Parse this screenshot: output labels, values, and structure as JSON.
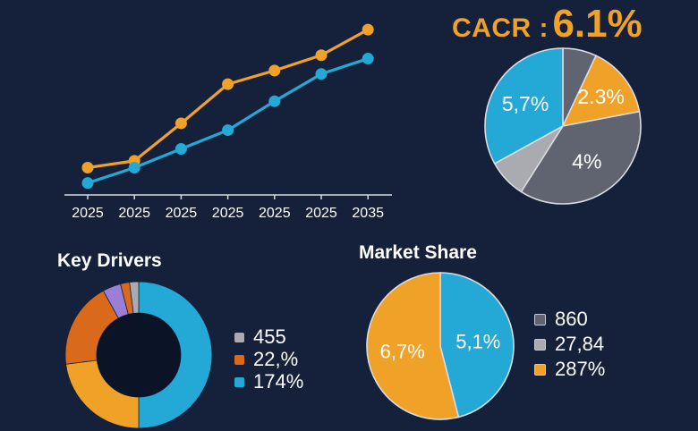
{
  "colors": {
    "background": "#15213a",
    "orange": "#f0a128",
    "blue": "#24a8d6",
    "dark_gray": "#5f6470",
    "light_gray": "#a9abb0",
    "rust": "#d96a1c",
    "text": "#ffffff",
    "axis": "#d7d9de"
  },
  "chart_data": [
    {
      "type": "line",
      "title": "",
      "categories": [
        "2025",
        "2025",
        "2025",
        "2025",
        "2025",
        "2025",
        "2035"
      ],
      "series": [
        {
          "name": "orange-series",
          "color": "#f0a128",
          "values": [
            1.0,
            1.4,
            3.6,
            5.9,
            6.7,
            7.6,
            9.1
          ]
        },
        {
          "name": "blue-series",
          "color": "#24a8d6",
          "values": [
            0.1,
            1.0,
            2.1,
            3.2,
            4.9,
            6.5,
            7.4
          ]
        }
      ],
      "ylim": [
        -0.6,
        10.0
      ],
      "grid": false
    },
    {
      "type": "pie",
      "title": "CACR : 6.1%",
      "title_parts": {
        "label": "CACR :",
        "value": "6.1%"
      },
      "slices": [
        {
          "label": "",
          "value": 7,
          "color": "#5f6470"
        },
        {
          "label": "2.3%",
          "value": 15,
          "color": "#f0a128"
        },
        {
          "label": "4%",
          "value": 37,
          "color": "#5f6470"
        },
        {
          "label": "",
          "value": 8,
          "color": "#a9abb0"
        },
        {
          "label": "5,7%",
          "value": 33,
          "color": "#24a8d6"
        }
      ]
    },
    {
      "type": "pie",
      "subtype": "donut",
      "title": "Key Drivers",
      "slices": [
        {
          "value": 50,
          "color": "#24a8d6"
        },
        {
          "value": 23,
          "color": "#f0a128"
        },
        {
          "value": 19,
          "color": "#d96a1c"
        },
        {
          "value": 4,
          "color": "#9b7fd6"
        },
        {
          "value": 2,
          "color": "#d96a1c"
        },
        {
          "value": 2,
          "color": "#a9abb0"
        }
      ],
      "legend": [
        {
          "label": "455",
          "color": "#a9abb0"
        },
        {
          "label": "22,%",
          "color": "#d96a1c"
        },
        {
          "label": "174%",
          "color": "#24a8d6"
        }
      ]
    },
    {
      "type": "pie",
      "title": "Market Share",
      "slices": [
        {
          "label": "5,1%",
          "value": 46,
          "color": "#24a8d6"
        },
        {
          "label": "6,7%",
          "value": 54,
          "color": "#f0a128"
        }
      ],
      "legend": [
        {
          "label": "860",
          "color": "#5f6470"
        },
        {
          "label": "27,84",
          "color": "#a9abb0"
        },
        {
          "label": "287%",
          "color": "#f0a128"
        }
      ]
    }
  ]
}
